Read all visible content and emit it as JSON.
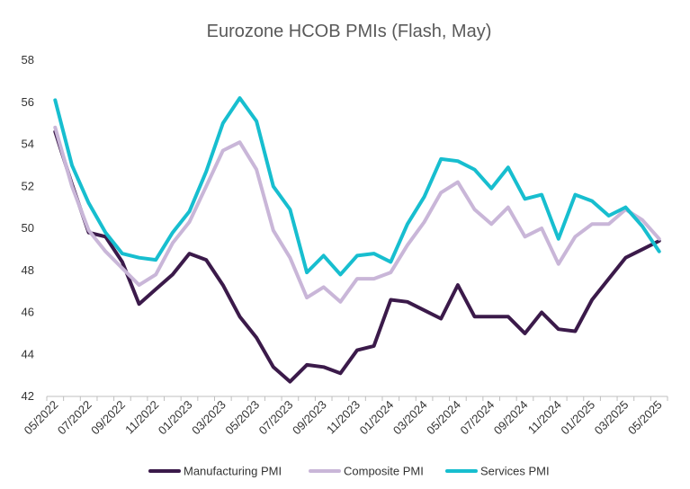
{
  "chart_data": {
    "type": "line",
    "title": "Eurozone HCOB PMIs (Flash, May)",
    "xlabel": "",
    "ylabel": "",
    "ylim": [
      42,
      58
    ],
    "yticks": [
      42,
      44,
      46,
      48,
      50,
      52,
      54,
      56,
      58
    ],
    "grid": false,
    "legend_position": "bottom",
    "x": [
      "05/2022",
      "06/2022",
      "07/2022",
      "08/2022",
      "09/2022",
      "10/2022",
      "11/2022",
      "12/2022",
      "01/2023",
      "02/2023",
      "03/2023",
      "04/2023",
      "05/2023",
      "06/2023",
      "07/2023",
      "08/2023",
      "09/2023",
      "10/2023",
      "11/2023",
      "12/2023",
      "01/2024",
      "02/2024",
      "03/2024",
      "04/2024",
      "05/2024",
      "06/2024",
      "07/2024",
      "08/2024",
      "09/2024",
      "10/2024",
      "11/2024",
      "12/2024",
      "01/2025",
      "02/2025",
      "03/2025",
      "04/2025",
      "05/2025"
    ],
    "xtick_labels": [
      "05/2022",
      "07/2022",
      "09/2022",
      "11/2022",
      "01/2023",
      "03/2023",
      "05/2023",
      "07/2023",
      "09/2023",
      "11/2023",
      "01/2024",
      "03/2024",
      "05/2024",
      "07/2024",
      "09/2024",
      "11/2024",
      "01/2025",
      "03/2025",
      "05/2025"
    ],
    "series": [
      {
        "name": "Manufacturing PMI",
        "color": "#3b1a4a",
        "values": [
          54.6,
          52.1,
          49.8,
          49.6,
          48.4,
          46.4,
          47.1,
          47.8,
          48.8,
          48.5,
          47.3,
          45.8,
          44.8,
          43.4,
          42.7,
          43.5,
          43.4,
          43.1,
          44.2,
          44.4,
          46.6,
          46.5,
          46.1,
          45.7,
          47.3,
          45.8,
          45.8,
          45.8,
          45.0,
          46.0,
          45.2,
          45.1,
          46.6,
          47.6,
          48.6,
          49.0,
          49.4
        ]
      },
      {
        "name": "Composite PMI",
        "color": "#c9b6d8",
        "values": [
          54.8,
          52.0,
          49.9,
          48.9,
          48.1,
          47.3,
          47.8,
          49.3,
          50.3,
          52.0,
          53.7,
          54.1,
          52.8,
          49.9,
          48.6,
          46.7,
          47.2,
          46.5,
          47.6,
          47.6,
          47.9,
          49.2,
          50.3,
          51.7,
          52.2,
          50.9,
          50.2,
          51.0,
          49.6,
          50.0,
          48.3,
          49.6,
          50.2,
          50.2,
          50.9,
          50.4,
          49.5
        ]
      },
      {
        "name": "Services PMI",
        "color": "#17becf",
        "values": [
          56.1,
          53.0,
          51.2,
          49.8,
          48.8,
          48.6,
          48.5,
          49.8,
          50.8,
          52.7,
          55.0,
          56.2,
          55.1,
          52.0,
          50.9,
          47.9,
          48.7,
          47.8,
          48.7,
          48.8,
          48.4,
          50.2,
          51.5,
          53.3,
          53.2,
          52.8,
          51.9,
          52.9,
          51.4,
          51.6,
          49.5,
          51.6,
          51.3,
          50.6,
          51.0,
          50.1,
          48.9
        ]
      }
    ]
  }
}
